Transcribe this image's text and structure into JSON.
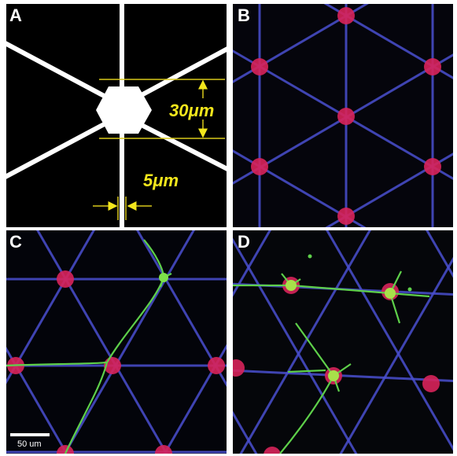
{
  "panels": [
    {
      "label": "A",
      "annotations": [
        "30μm",
        "5μm"
      ]
    },
    {
      "label": "B"
    },
    {
      "label": "C",
      "scale_bar": "50 um"
    },
    {
      "label": "D"
    }
  ]
}
